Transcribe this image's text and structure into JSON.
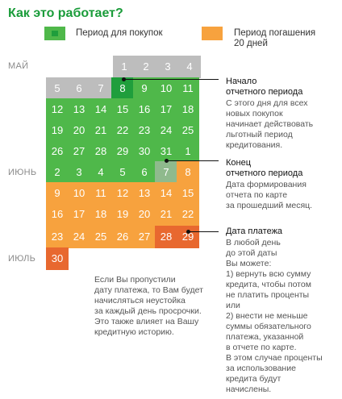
{
  "title": "Как это работает?",
  "colors": {
    "title": "#1a9c3a",
    "green": "#4fb84a",
    "dark_green": "#1f9e3c",
    "orange": "#f7a23e",
    "dark_orange": "#e8682f",
    "grey": "#bdbdbd"
  },
  "legend": {
    "purchase_period": "Период для покупок",
    "repayment_period_line1": "Период погашения",
    "repayment_period_line2": "20 дней"
  },
  "months": {
    "may": "МАЙ",
    "june": "ИЮНЬ",
    "july": "ИЮЛЬ"
  },
  "calendar": {
    "row1": [
      "1",
      "2",
      "3",
      "4"
    ],
    "row2": [
      "5",
      "6",
      "7",
      "8",
      "9",
      "10",
      "11"
    ],
    "row3": [
      "12",
      "13",
      "14",
      "15",
      "16",
      "17",
      "18"
    ],
    "row4": [
      "19",
      "20",
      "21",
      "22",
      "23",
      "24",
      "25"
    ],
    "row5": [
      "26",
      "27",
      "28",
      "29",
      "30",
      "31",
      "1"
    ],
    "row6": [
      "2",
      "3",
      "4",
      "5",
      "6",
      "7",
      "8"
    ],
    "row7": [
      "9",
      "10",
      "11",
      "12",
      "13",
      "14",
      "15"
    ],
    "row8": [
      "16",
      "17",
      "18",
      "19",
      "20",
      "21",
      "22"
    ],
    "row9": [
      "23",
      "24",
      "25",
      "26",
      "27",
      "28",
      "29"
    ],
    "row10": [
      "30"
    ]
  },
  "annotations": {
    "start": {
      "title1": "Начало",
      "title2": "отчетного периода",
      "lines": [
        "С этого дня для всех",
        "новых покупок",
        "начинает действовать",
        "льготный период",
        "кредитования."
      ]
    },
    "end": {
      "title1": "Конец",
      "title2": "отчетного периода",
      "lines": [
        "Дата формирования",
        "отчета по карте",
        "за прошедший месяц."
      ]
    },
    "payment": {
      "title": "Дата платежа",
      "lines": [
        "В любой день",
        "до этой даты",
        "Вы можете:",
        "1) вернуть всю сумму",
        "кредита, чтобы потом",
        "не платить проценты",
        "или",
        "2) внести не меньше",
        "суммы обязательного",
        "платежа, указанной",
        "в отчете по карте.",
        "В этом случае проценты",
        "за использование",
        "кредита будут",
        "начислены."
      ]
    },
    "penalty": {
      "lines": [
        "Если Вы пропустили",
        "дату платежа, то Вам будет",
        "начисляться неустойка",
        "за каждый день просрочки.",
        "Это также влияет на Вашу",
        "кредитную историю."
      ]
    }
  }
}
